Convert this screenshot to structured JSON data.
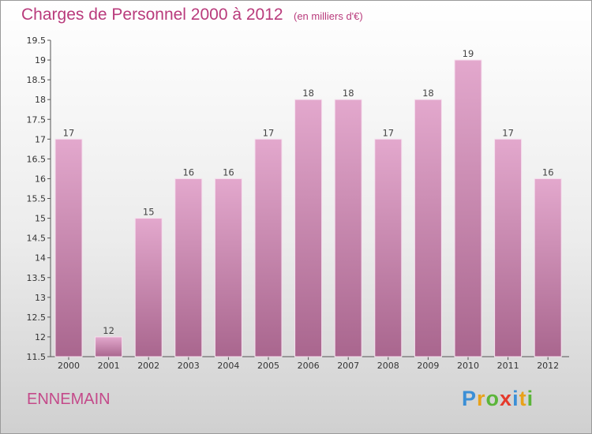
{
  "header": {
    "title": "Charges de Personnel 2000 à 2012",
    "unit": "(en milliers d'€)"
  },
  "footer": {
    "commune": "ENNEMAIN",
    "logo": {
      "text": "Proxiti",
      "letter_colors": [
        "#3b8fd6",
        "#e8a21a",
        "#5bb53a",
        "#e53a2c",
        "#3b8fd6",
        "#e8a21a",
        "#5bb53a"
      ]
    }
  },
  "colors": {
    "bar_top": "#e3a8cd",
    "bar_bottom": "#a9668e",
    "title": "#b93b7c"
  },
  "chart_data": {
    "type": "bar",
    "title": "Charges de Personnel 2000 à 2012",
    "subtitle": "(en milliers d'€)",
    "categories": [
      "2000",
      "2001",
      "2002",
      "2003",
      "2004",
      "2005",
      "2006",
      "2007",
      "2008",
      "2009",
      "2010",
      "2011",
      "2012"
    ],
    "values": [
      17,
      12,
      15,
      16,
      16,
      17,
      18,
      18,
      17,
      18,
      19,
      17,
      16
    ],
    "ylim": [
      11.5,
      19.5
    ],
    "yticks": [
      "11.5",
      "12",
      "12.5",
      "13",
      "13.5",
      "14",
      "14.5",
      "15",
      "15.5",
      "16",
      "16.5",
      "17",
      "17.5",
      "18",
      "18.5",
      "19",
      "19.5"
    ],
    "grid": false,
    "data_labels": true
  }
}
